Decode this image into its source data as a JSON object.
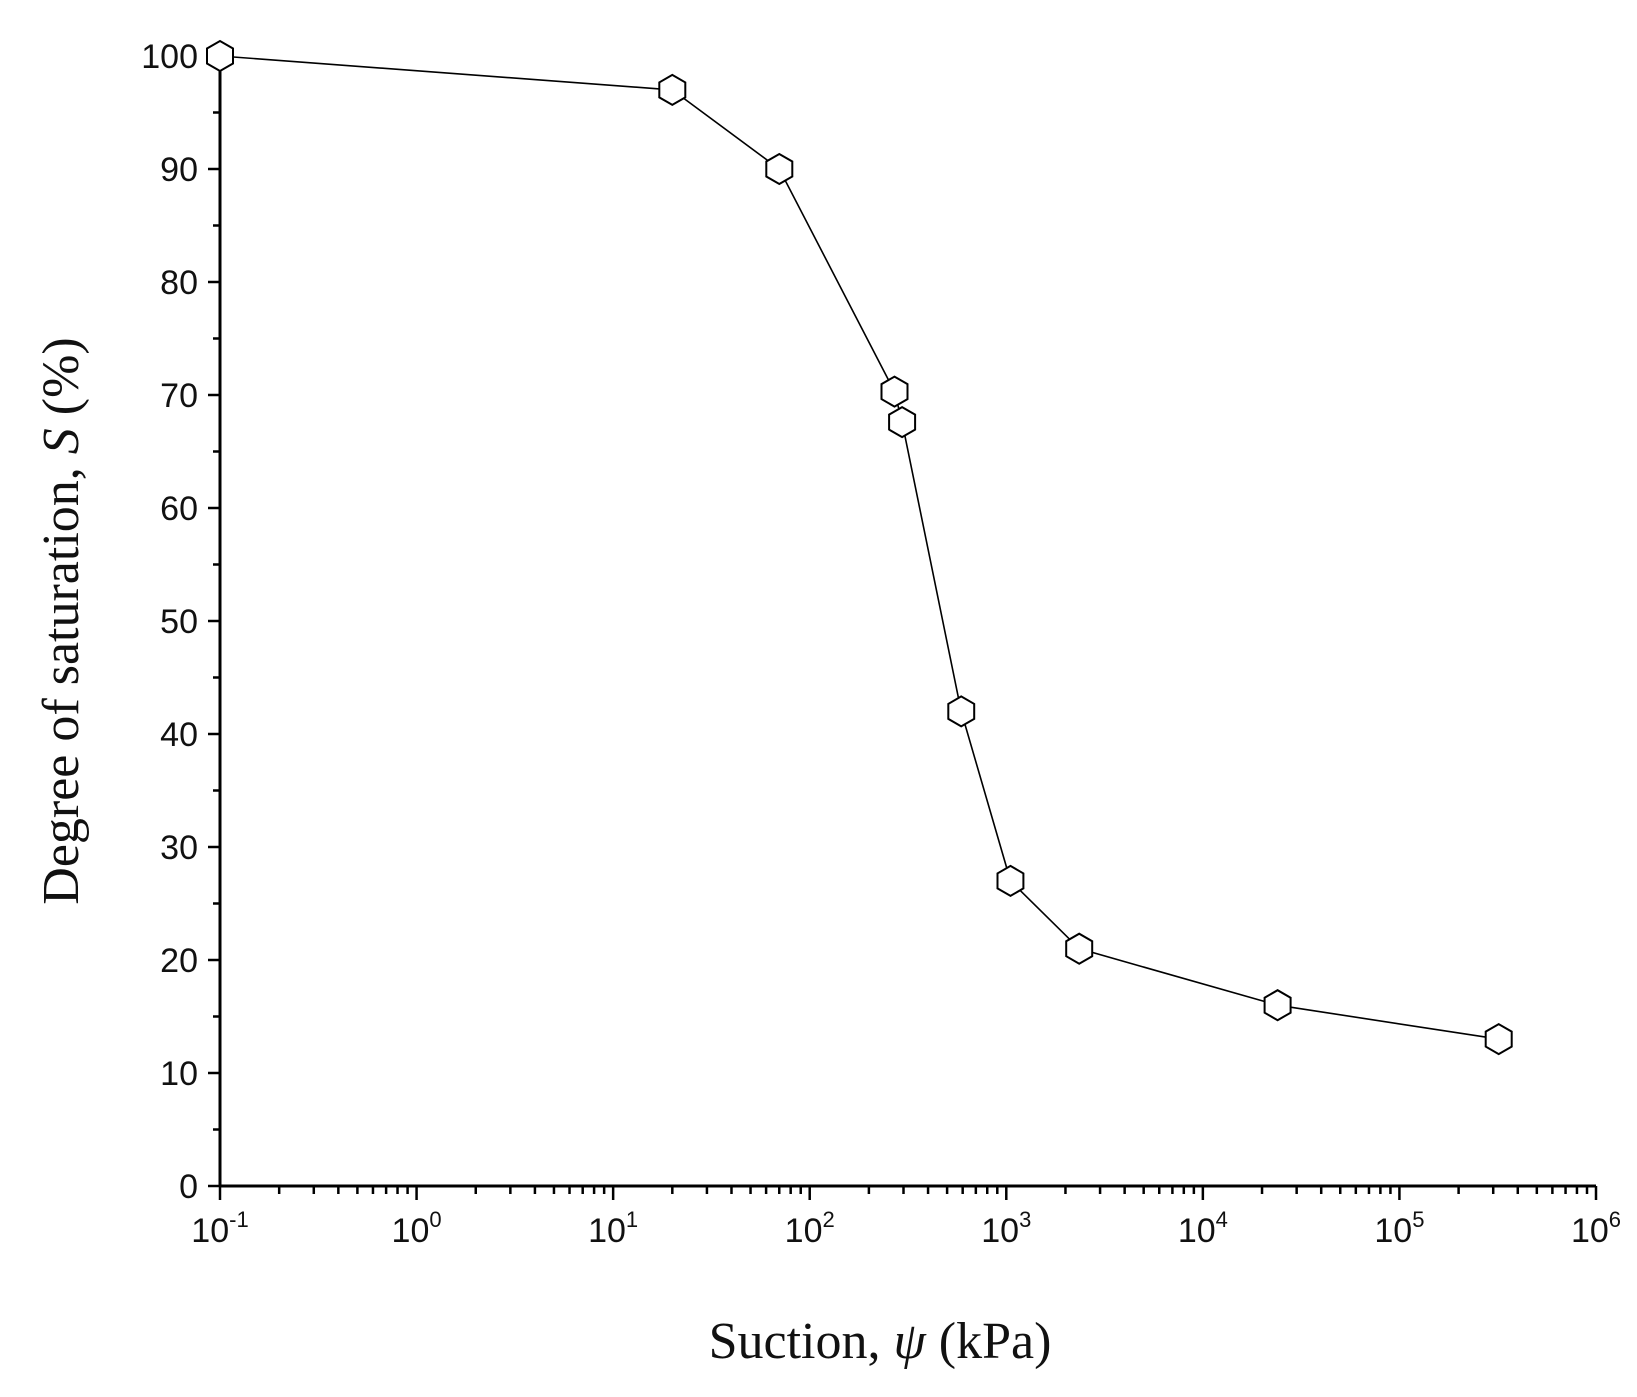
{
  "chart_data": {
    "type": "line",
    "x_scale": "log",
    "xlim": [
      0.1,
      1000000
    ],
    "ylim": [
      0,
      100
    ],
    "xlabel": {
      "prefix": "Suction,  ",
      "symbol": "ψ",
      "suffix": " (kPa)"
    },
    "ylabel": {
      "prefix": "Degree of saturation, ",
      "symbol": "S",
      "suffix": " (%)"
    },
    "x_ticks": [
      {
        "base": "10",
        "exp": "-1",
        "value": 0.1
      },
      {
        "base": "10",
        "exp": "0",
        "value": 1
      },
      {
        "base": "10",
        "exp": "1",
        "value": 10
      },
      {
        "base": "10",
        "exp": "2",
        "value": 100
      },
      {
        "base": "10",
        "exp": "3",
        "value": 1000
      },
      {
        "base": "10",
        "exp": "4",
        "value": 10000
      },
      {
        "base": "10",
        "exp": "5",
        "value": 100000
      },
      {
        "base": "10",
        "exp": "6",
        "value": 1000000
      }
    ],
    "y_ticks": [
      "0",
      "10",
      "20",
      "30",
      "40",
      "50",
      "60",
      "70",
      "80",
      "90",
      "100"
    ],
    "grid": false,
    "legend": "none",
    "marker": "hexagon-open",
    "series": [
      {
        "points": [
          {
            "x": 0.1,
            "y": 100
          },
          {
            "x": 20,
            "y": 97
          },
          {
            "x": 70,
            "y": 90
          },
          {
            "x": 270,
            "y": 70.3
          },
          {
            "x": 295,
            "y": 67.6
          },
          {
            "x": 590,
            "y": 42
          },
          {
            "x": 1050,
            "y": 27
          },
          {
            "x": 2350,
            "y": 21
          },
          {
            "x": 24000,
            "y": 16
          },
          {
            "x": 320000,
            "y": 13
          }
        ]
      }
    ]
  }
}
